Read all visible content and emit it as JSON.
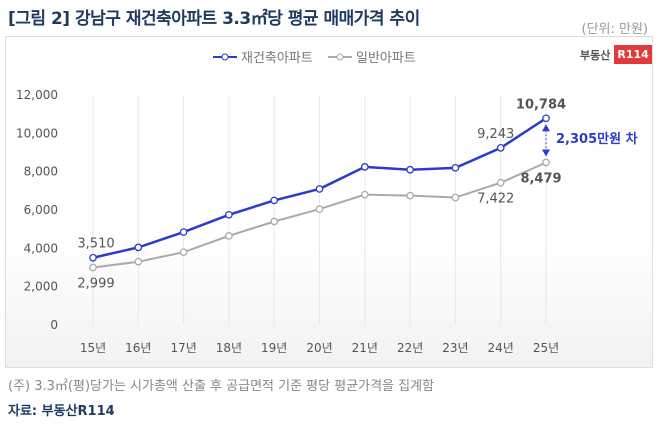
{
  "title": "[그림 2] 강남구 재건축아파트 3.3㎡당 평균 매매가격 추이",
  "unit": "(단위: 만원)",
  "logo": {
    "text": "부동산",
    "badge": "R114",
    "color": "#e03a3a"
  },
  "note": "(주) 3.3㎡(평)당가는 시가총액 산출 후 공급면적 기준 평당 평균가격을 집계함",
  "source": "자료: 부동산R114",
  "chart_data": {
    "type": "line",
    "categories": [
      "15년",
      "16년",
      "17년",
      "18년",
      "19년",
      "20년",
      "21년",
      "22년",
      "23년",
      "24년",
      "25년"
    ],
    "ylim": [
      0,
      12000
    ],
    "yticks": [
      "0",
      "2,000",
      "4,000",
      "6,000",
      "8,000",
      "10,000",
      "12,000"
    ],
    "legend_position": "top",
    "series": [
      {
        "name": "재건축아파트",
        "color": "#2b3bcc",
        "values": [
          3510,
          4050,
          4850,
          5750,
          6500,
          7100,
          8250,
          8100,
          8200,
          9243,
          10784
        ],
        "labels": {
          "0": "3,510",
          "9": "9,243",
          "10": "10,784"
        }
      },
      {
        "name": "일반아파트",
        "color": "#aaaaaa",
        "values": [
          2999,
          3300,
          3800,
          4650,
          5400,
          6050,
          6800,
          6750,
          6650,
          7422,
          8479
        ],
        "labels": {
          "0": "2,999",
          "9": "7,422",
          "10": "8,479"
        }
      }
    ],
    "annotation": {
      "text": "2,305만원 차",
      "color": "#2b3bcc"
    }
  }
}
